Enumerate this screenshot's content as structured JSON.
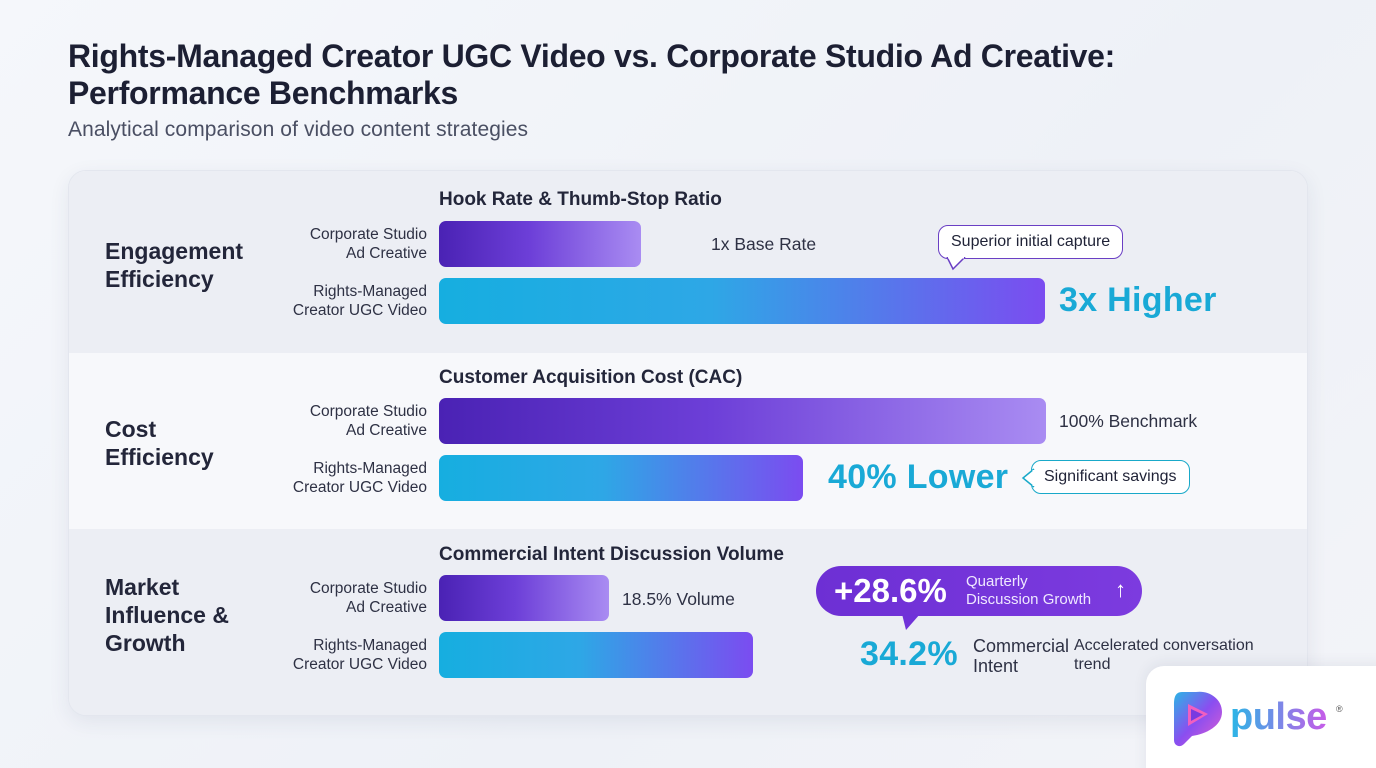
{
  "title": "Rights-Managed Creator UGC Video vs. Corporate Studio Ad Creative: Performance Benchmarks",
  "subtitle": "Analytical comparison of video content strategies",
  "series_labels": {
    "corporate": [
      "Corporate Studio",
      "Ad Creative"
    ],
    "ugc": [
      "Rights-Managed",
      "Creator UGC Video"
    ]
  },
  "colors": {
    "corporate_bar": "#4a22b4",
    "ugc_bar": "#16aee0",
    "accent_cyan": "#19a9d6",
    "accent_purple": "#6d2fd4"
  },
  "chart_data": {
    "type": "bar",
    "orientation": "horizontal",
    "sections": [
      {
        "label": [
          "Engagement",
          "Efficiency"
        ],
        "metric": "Hook Rate & Thumb-Stop Ratio",
        "corporate": {
          "value": 1,
          "label": "1x Base Rate"
        },
        "ugc": {
          "value": 3,
          "label": "3x Higher"
        },
        "callout": "Superior initial capture"
      },
      {
        "label": [
          "Cost",
          "Efficiency"
        ],
        "metric": "Customer Acquisition Cost (CAC)",
        "corporate": {
          "value": 100,
          "label": "100% Benchmark"
        },
        "ugc": {
          "value": 60,
          "label": "40% Lower"
        },
        "callout": "Significant savings"
      },
      {
        "label": [
          "Market",
          "Influence &",
          "Growth"
        ],
        "metric": "Commercial Intent Discussion Volume",
        "corporate": {
          "value": 18.5,
          "label": "18.5% Volume"
        },
        "ugc": {
          "value": 34.2,
          "label": "34.2%",
          "label_suffix": [
            "Commercial",
            "Intent"
          ]
        },
        "growth": {
          "value": "+28.6%",
          "text": [
            "Quarterly",
            "Discussion Growth"
          ],
          "icon": "arrow-up-icon"
        },
        "note": [
          "Accelerated conversation",
          "trend"
        ]
      }
    ]
  },
  "logo": {
    "text": "pulse",
    "reg": "®",
    "icon": "pulse-logo-icon"
  }
}
